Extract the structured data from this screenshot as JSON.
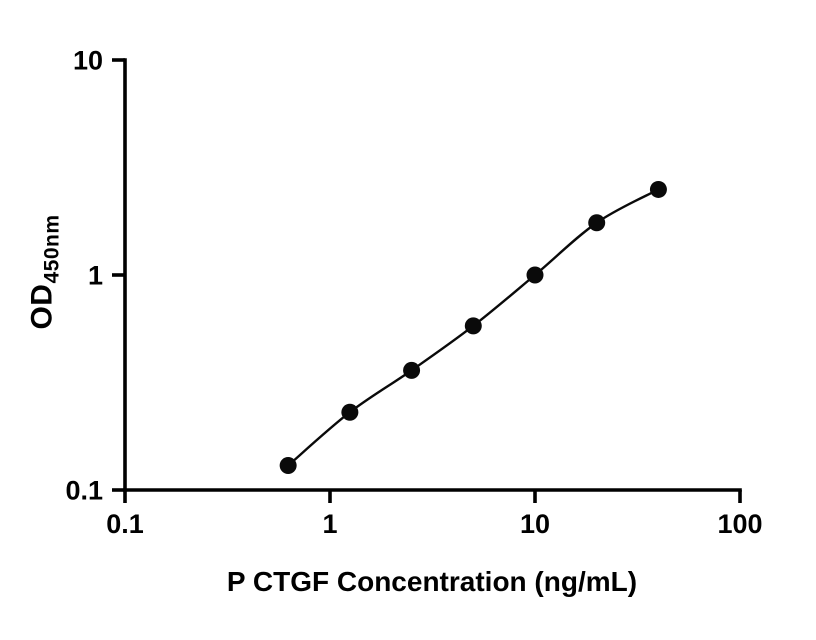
{
  "chart_data": {
    "type": "scatter",
    "xlabel": "P CTGF Concentration (ng/mL)",
    "ylabel_main": "OD",
    "ylabel_sub": "450nm",
    "xscale": "log",
    "yscale": "log",
    "xlim": [
      0.1,
      100
    ],
    "ylim": [
      0.1,
      10
    ],
    "x_tick_values": [
      0.1,
      1,
      10,
      100
    ],
    "x_tick_labels": [
      "0.1",
      "1",
      "10",
      "100"
    ],
    "y_tick_values": [
      0.1,
      1,
      10
    ],
    "y_tick_labels": [
      "0.1",
      "1",
      "10"
    ],
    "x": [
      0.625,
      1.25,
      2.5,
      5,
      10,
      20,
      40
    ],
    "y": [
      0.13,
      0.23,
      0.36,
      0.58,
      1.0,
      1.75,
      2.5
    ],
    "marker_color": "#0a0a0a",
    "line_color": "#0a0a0a",
    "axis_color": "#000000",
    "grid": "off",
    "legend": "none"
  }
}
